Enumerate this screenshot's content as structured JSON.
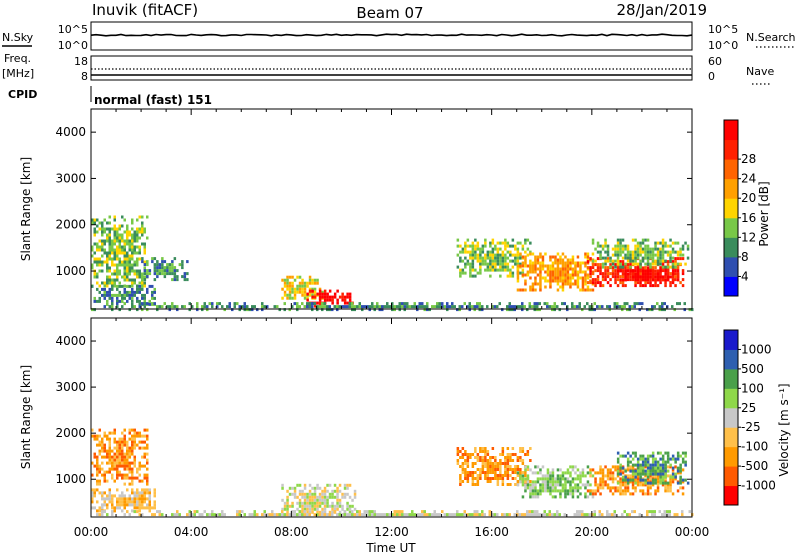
{
  "header": {
    "station": "Inuvik (fitACF)",
    "beam": "Beam 07",
    "date": "28/Jan/2019"
  },
  "side_labels": {
    "nsky": "N.Sky",
    "nsearch": "N.Search",
    "freq": "Freq.",
    "mhz": "[MHz]",
    "nave": "Nave",
    "cpid": "CPID",
    "mode": "normal (fast) 151"
  },
  "noise_panel": {
    "left_ticks": [
      "10^5",
      "10^0"
    ],
    "right_ticks": [
      "10^5",
      "10^0"
    ]
  },
  "freq_panel": {
    "left_ticks": [
      "18",
      "8"
    ],
    "right_ticks": [
      "60",
      "0"
    ]
  },
  "x_axis": {
    "label": "Time UT",
    "ticks": [
      "00:00",
      "04:00",
      "08:00",
      "12:00",
      "16:00",
      "20:00",
      "00:00"
    ]
  },
  "colors": {
    "power": [
      "#0000ff",
      "#2f4fb0",
      "#3a8c5c",
      "#78c848",
      "#ffd400",
      "#ffa000",
      "#ff6400",
      "#ff2000",
      "#ff0000"
    ],
    "velocity": [
      "#ff0000",
      "#ff5a00",
      "#ff9a00",
      "#ffc04a",
      "#c8c8c8",
      "#8fd84a",
      "#4aa04a",
      "#2e5fb0",
      "#1a1acc"
    ]
  },
  "chart_data": [
    {
      "type": "heatmap",
      "title": "Power",
      "ylabel": "Slant Range [km]",
      "xlabel": "",
      "x_range": [
        0,
        24
      ],
      "ylim": [
        180,
        4500
      ],
      "yticks": [
        "1000",
        "2000",
        "3000",
        "4000"
      ],
      "colorbar_label": "Power [dB]",
      "colorbar_ticks": [
        "4",
        "8",
        "12",
        "16",
        "20",
        "24",
        "28"
      ],
      "regions": [
        {
          "t": [
            0.0,
            2.2
          ],
          "r": [
            700,
            2200
          ],
          "level": 3
        },
        {
          "t": [
            0.0,
            2.5
          ],
          "r": [
            300,
            700
          ],
          "level": 2
        },
        {
          "t": [
            2.0,
            3.8
          ],
          "r": [
            800,
            1300
          ],
          "level": 2
        },
        {
          "t": [
            7.6,
            9.2
          ],
          "r": [
            400,
            900
          ],
          "level": 4
        },
        {
          "t": [
            8.6,
            10.4
          ],
          "r": [
            250,
            600
          ],
          "level": 8
        },
        {
          "t": [
            14.6,
            17.5
          ],
          "r": [
            900,
            1700
          ],
          "level": 3
        },
        {
          "t": [
            17.0,
            20.0
          ],
          "r": [
            600,
            1400
          ],
          "level": 5
        },
        {
          "t": [
            19.8,
            23.6
          ],
          "r": [
            700,
            1300
          ],
          "level": 7
        },
        {
          "t": [
            21.0,
            23.4
          ],
          "r": [
            800,
            1100
          ],
          "level": 8
        },
        {
          "t": [
            20.0,
            23.8
          ],
          "r": [
            1100,
            1700
          ],
          "level": 3
        },
        {
          "t": [
            0.0,
            24.0
          ],
          "r": [
            200,
            330
          ],
          "level": 2
        }
      ]
    },
    {
      "type": "heatmap",
      "title": "Velocity",
      "ylabel": "Slant Range [km]",
      "xlabel": "Time UT",
      "x_range": [
        0,
        24
      ],
      "ylim": [
        180,
        4500
      ],
      "yticks": [
        "1000",
        "2000",
        "3000",
        "4000"
      ],
      "colorbar_label": "Velocity [m s⁻¹]",
      "colorbar_ticks": [
        "1000",
        "500",
        "100",
        "25",
        "-25",
        "-100",
        "-500",
        "-1000"
      ],
      "regions": [
        {
          "t": [
            0.0,
            2.2
          ],
          "r": [
            900,
            2100
          ],
          "level": 2
        },
        {
          "t": [
            0.0,
            2.5
          ],
          "r": [
            300,
            800
          ],
          "level": 3
        },
        {
          "t": [
            7.6,
            10.5
          ],
          "r": [
            250,
            900
          ],
          "level": 4
        },
        {
          "t": [
            14.6,
            17.5
          ],
          "r": [
            900,
            1700
          ],
          "level": 2
        },
        {
          "t": [
            17.0,
            20.0
          ],
          "r": [
            600,
            1300
          ],
          "level": 5
        },
        {
          "t": [
            19.8,
            23.6
          ],
          "r": [
            700,
            1300
          ],
          "level": 2
        },
        {
          "t": [
            21.0,
            23.8
          ],
          "r": [
            900,
            1600
          ],
          "level": 6
        },
        {
          "t": [
            0.0,
            24.0
          ],
          "r": [
            200,
            330
          ],
          "level": 4
        }
      ]
    }
  ]
}
